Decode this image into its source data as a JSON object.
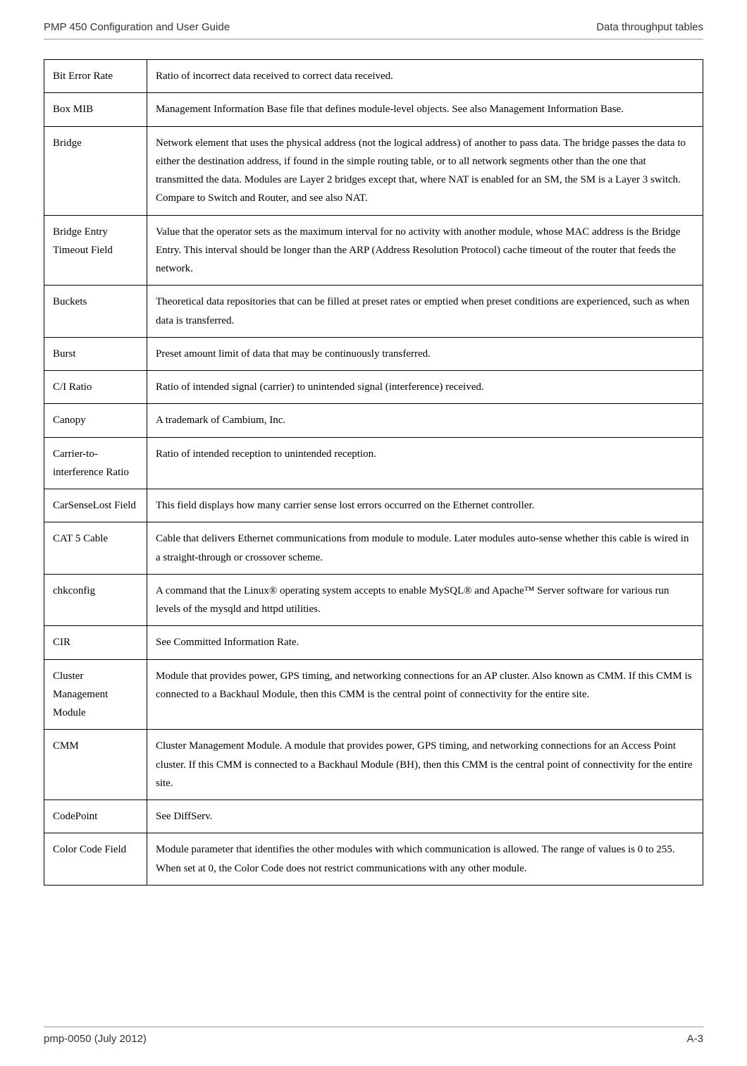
{
  "header": {
    "left": "PMP 450 Configuration and User Guide",
    "right": "Data throughput tables"
  },
  "footer": {
    "left": "pmp-0050 (July 2012)",
    "right": "A-3"
  },
  "rows": [
    {
      "term": "Bit Error Rate",
      "def": "Ratio of incorrect data received to correct data received."
    },
    {
      "term": "Box MIB",
      "def": "Management Information Base file that defines module-level objects. See also Management Information Base."
    },
    {
      "term": "Bridge",
      "def": "Network element that uses the physical address (not the logical address) of another to pass data. The bridge passes the data to either the destination address, if found in the simple routing table, or to all network segments other than the one that transmitted the data. Modules are Layer 2 bridges except that, where NAT is enabled for an SM, the SM is a Layer 3 switch. Compare to Switch and Router, and see also NAT."
    },
    {
      "term": "Bridge Entry Timeout Field",
      "def": "Value that the operator sets as the maximum interval for no activity with another module, whose MAC address is the Bridge Entry. This interval should be longer than the ARP (Address Resolution Protocol) cache timeout of the router that feeds the network."
    },
    {
      "term": "Buckets",
      "def": "Theoretical data repositories that can be filled at preset rates or emptied when preset conditions are experienced, such as when data is transferred."
    },
    {
      "term": "Burst",
      "def": "Preset amount limit of data that may be continuously transferred."
    },
    {
      "term": "C/I Ratio",
      "def": "Ratio of intended signal (carrier) to unintended signal (interference) received."
    },
    {
      "term": "Canopy",
      "def": "A trademark of Cambium, Inc."
    },
    {
      "term": "Carrier-to-interference Ratio",
      "def": "Ratio of intended reception to unintended reception."
    },
    {
      "term": "CarSenseLost Field",
      "def": "This field displays how many carrier sense lost errors occurred on the Ethernet controller."
    },
    {
      "term": "CAT 5 Cable",
      "def": "Cable that delivers Ethernet communications from module to module. Later modules auto-sense whether this cable is wired in a straight-through or crossover scheme."
    },
    {
      "term": "chkconfig",
      "def": "A command that the Linux® operating system accepts to enable MySQL® and Apache™ Server software for various run levels of the mysqld and httpd utilities."
    },
    {
      "term": "CIR",
      "def": "See Committed Information Rate."
    },
    {
      "term": "Cluster Management Module",
      "def": "Module that provides power, GPS timing, and networking connections for an AP cluster. Also known as CMM. If this CMM is connected to a Backhaul Module, then this CMM is the central point of connectivity for the entire site."
    },
    {
      "term": "CMM",
      "def": "Cluster Management Module. A module that provides power, GPS timing, and networking connections for an Access Point cluster. If this CMM is connected to a Backhaul Module (BH), then this CMM is the central point of connectivity for the entire site."
    },
    {
      "term": "CodePoint",
      "def": "See DiffServ."
    },
    {
      "term": "Color Code Field",
      "def": "Module parameter that identifies the other modules with which communication is allowed. The range of values is 0 to 255. When set at 0, the Color Code does not restrict communications with any other module."
    }
  ]
}
